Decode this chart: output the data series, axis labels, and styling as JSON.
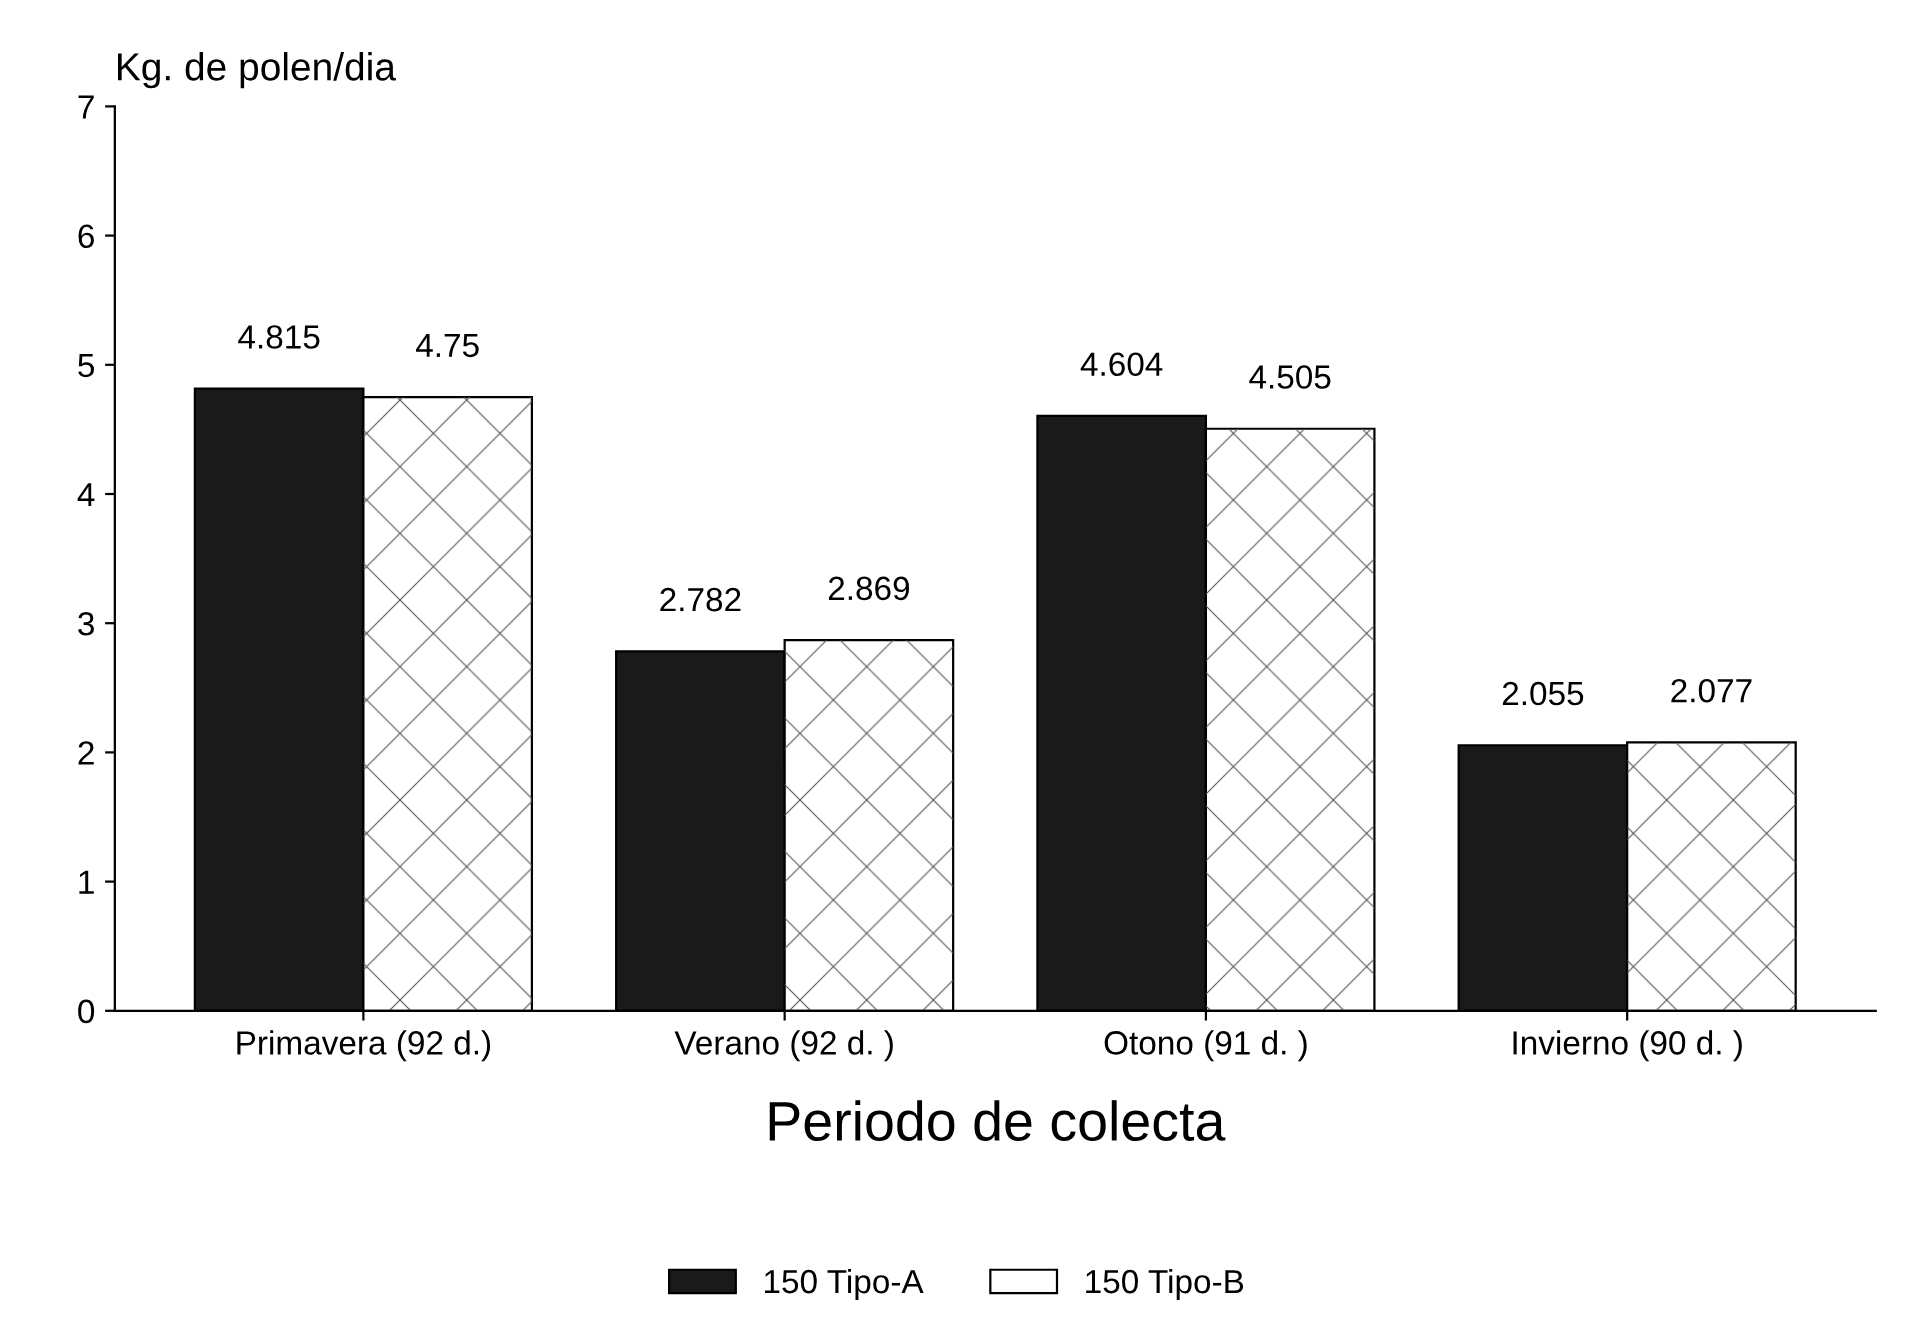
{
  "chart_data": {
    "type": "bar",
    "xlabel": "Periodo de colecta",
    "ylabel": "Kg. de polen/dia",
    "categories": [
      "Primavera (92 d.)",
      "Verano (92 d. )",
      "Otono (91 d. )",
      "Invierno (90 d. )"
    ],
    "series": [
      {
        "name": "150 Tipo-A",
        "color": "#1a1a1a",
        "values": [
          4.815,
          2.782,
          4.604,
          2.055
        ]
      },
      {
        "name": "150 Tipo-B",
        "color": "#ffffff",
        "values": [
          4.75,
          2.869,
          4.505,
          2.077
        ]
      }
    ],
    "ylim": [
      0,
      7
    ],
    "yticks": [
      0,
      1,
      2,
      3,
      4,
      5,
      6,
      7
    ],
    "data_labels": true,
    "grid": false,
    "legend": "bottom"
  }
}
